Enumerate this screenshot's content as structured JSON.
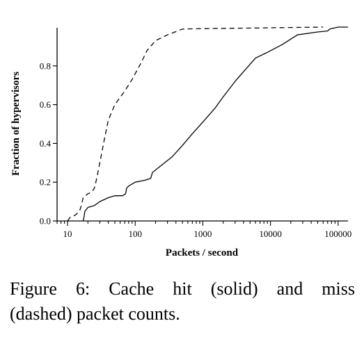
{
  "chart_data": {
    "type": "line",
    "title": "",
    "xlabel": "Packets / second",
    "ylabel": "Fraction of hypervisors",
    "xscale": "log",
    "xlim": [
      7,
      140000
    ],
    "ylim": [
      0,
      1.0
    ],
    "xticks": [
      10,
      100,
      1000,
      10000,
      100000
    ],
    "xtick_labels": [
      "10",
      "100",
      "1000",
      "10000",
      "100000"
    ],
    "yticks": [
      0.0,
      0.2,
      0.4,
      0.6,
      0.8
    ],
    "ytick_labels": [
      "0.0",
      "0.2",
      "0.4",
      "0.6",
      "0.8"
    ],
    "grid": false,
    "series": [
      {
        "style": "solid",
        "points": [
          [
            17,
            0
          ],
          [
            17.5,
            0.02
          ],
          [
            18,
            0.05
          ],
          [
            20,
            0.07
          ],
          [
            25,
            0.08
          ],
          [
            30,
            0.1
          ],
          [
            40,
            0.12
          ],
          [
            50,
            0.13
          ],
          [
            65,
            0.13
          ],
          [
            72,
            0.14
          ],
          [
            75,
            0.17
          ],
          [
            80,
            0.18
          ],
          [
            100,
            0.2
          ],
          [
            140,
            0.21
          ],
          [
            170,
            0.22
          ],
          [
            180,
            0.25
          ],
          [
            250,
            0.29
          ],
          [
            350,
            0.33
          ],
          [
            500,
            0.39
          ],
          [
            700,
            0.45
          ],
          [
            1000,
            0.51
          ],
          [
            1500,
            0.58
          ],
          [
            2000,
            0.64
          ],
          [
            3000,
            0.72
          ],
          [
            4000,
            0.77
          ],
          [
            6000,
            0.84
          ],
          [
            9000,
            0.87
          ],
          [
            15000,
            0.91
          ],
          [
            25000,
            0.96
          ],
          [
            50000,
            0.975
          ],
          [
            70000,
            0.98
          ],
          [
            75000,
            0.99
          ],
          [
            100000,
            1.0
          ],
          [
            140000,
            1.0
          ]
        ]
      },
      {
        "style": "dashed",
        "points": [
          [
            10,
            0
          ],
          [
            11,
            0.02
          ],
          [
            13,
            0.03
          ],
          [
            15,
            0.05
          ],
          [
            16,
            0.08
          ],
          [
            17,
            0.12
          ],
          [
            20,
            0.14
          ],
          [
            23,
            0.15
          ],
          [
            25,
            0.17
          ],
          [
            27,
            0.22
          ],
          [
            30,
            0.3
          ],
          [
            35,
            0.42
          ],
          [
            40,
            0.52
          ],
          [
            50,
            0.6
          ],
          [
            70,
            0.67
          ],
          [
            90,
            0.73
          ],
          [
            120,
            0.81
          ],
          [
            150,
            0.88
          ],
          [
            200,
            0.93
          ],
          [
            300,
            0.96
          ],
          [
            500,
            0.99
          ],
          [
            1000,
            0.992
          ],
          [
            5000,
            0.995
          ],
          [
            20000,
            0.998
          ],
          [
            60000,
            1.0
          ]
        ]
      }
    ]
  },
  "caption": {
    "line1_words": [
      "Figure",
      "6:",
      "Cache",
      "hit",
      "(solid)",
      "and",
      "miss"
    ],
    "line2": "(dashed) packet counts."
  }
}
